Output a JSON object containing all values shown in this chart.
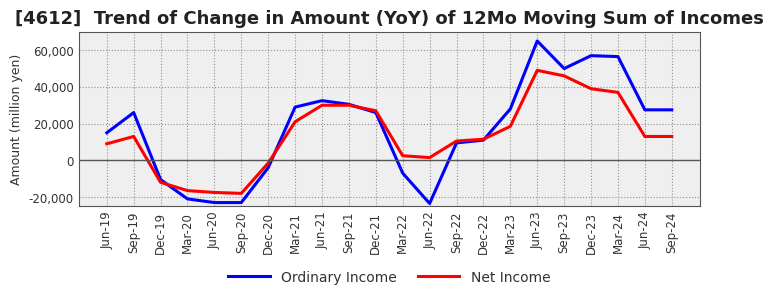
{
  "title": "[4612]  Trend of Change in Amount (YoY) of 12Mo Moving Sum of Incomes",
  "ylabel": "Amount (million yen)",
  "ordinary_income": {
    "label": "Ordinary Income",
    "color": "#0000FF",
    "x": [
      "Jun-19",
      "Sep-19",
      "Dec-19",
      "Mar-20",
      "Jun-20",
      "Sep-20",
      "Dec-20",
      "Mar-21",
      "Jun-21",
      "Sep-21",
      "Dec-21",
      "Mar-22",
      "Jun-22",
      "Sep-22",
      "Dec-22",
      "Mar-23",
      "Jun-23",
      "Sep-23",
      "Dec-23",
      "Mar-24",
      "Jun-24",
      "Sep-24"
    ],
    "y": [
      15000,
      26000,
      -10500,
      -21000,
      -23000,
      -23000,
      -4000,
      29000,
      32500,
      30500,
      26000,
      -7000,
      -23500,
      9500,
      11000,
      28000,
      65000,
      50000,
      57000,
      56500,
      27500,
      27500
    ]
  },
  "net_income": {
    "label": "Net Income",
    "color": "#FF0000",
    "x": [
      "Jun-19",
      "Sep-19",
      "Dec-19",
      "Mar-20",
      "Jun-20",
      "Sep-20",
      "Dec-20",
      "Mar-21",
      "Jun-21",
      "Sep-21",
      "Dec-21",
      "Mar-22",
      "Jun-22",
      "Sep-22",
      "Dec-22",
      "Mar-23",
      "Jun-23",
      "Sep-23",
      "Dec-23",
      "Mar-24",
      "Jun-24",
      "Sep-24"
    ],
    "y": [
      9000,
      13000,
      -12000,
      -16500,
      -17500,
      -18000,
      -1500,
      21000,
      30000,
      30000,
      27000,
      2500,
      1500,
      10500,
      11500,
      18500,
      49000,
      46000,
      39000,
      37000,
      13000,
      13000
    ]
  },
  "ylim": [
    -25000,
    70000
  ],
  "yticks": [
    -20000,
    0,
    20000,
    40000,
    60000
  ],
  "background_color": "#FFFFFF",
  "plot_bg_color": "#EFEFEF",
  "grid_color": "#888888",
  "line_width": 2.2,
  "title_fontsize": 13,
  "axis_fontsize": 9,
  "tick_fontsize": 8.5,
  "legend_fontsize": 10
}
